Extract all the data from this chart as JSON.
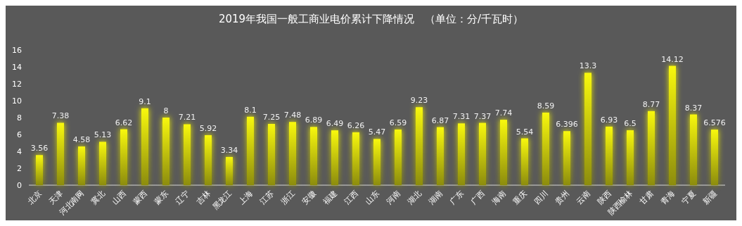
{
  "chart_data": {
    "type": "bar",
    "title": "2019年我国一般工商业电价累计下降情况　（单位：分/千瓦时）",
    "categories": [
      "北京",
      "天津",
      "河北南网",
      "冀北",
      "山西",
      "蒙西",
      "蒙东",
      "辽宁",
      "吉林",
      "黑龙江",
      "上海",
      "江苏",
      "浙江",
      "安徽",
      "福建",
      "江西",
      "山东",
      "河南",
      "湖北",
      "湖南",
      "广东",
      "广西",
      "海南",
      "重庆",
      "四川",
      "贵州",
      "云南",
      "陕西",
      "陕西榆林",
      "甘肃",
      "青海",
      "宁夏",
      "新疆"
    ],
    "values": [
      3.56,
      7.38,
      4.58,
      5.13,
      6.62,
      9.1,
      8,
      7.21,
      5.92,
      3.34,
      8.1,
      7.25,
      7.48,
      6.89,
      6.49,
      6.26,
      5.47,
      6.59,
      9.23,
      6.87,
      7.31,
      7.37,
      7.74,
      5.54,
      8.59,
      6.396,
      13.3,
      6.93,
      6.5,
      8.77,
      14.12,
      8.37,
      6.576
    ],
    "color": "#f8f80c",
    "ylim": [
      0,
      16
    ],
    "yticks": [
      0,
      2,
      4,
      6,
      8,
      10,
      12,
      14,
      16
    ],
    "data_labels": true
  }
}
